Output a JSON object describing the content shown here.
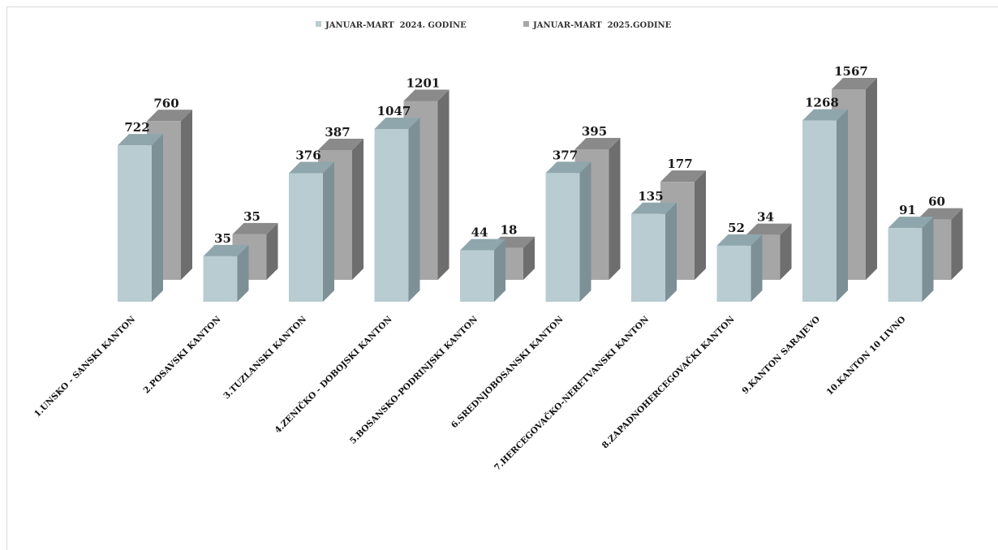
{
  "colors": {
    "series_2024_front": "#b8ccd1",
    "series_2024_side": "#7c9096",
    "series_2024_top": "#8fa6ac",
    "series_2025_front": "#a6a6a6",
    "series_2025_side": "#6e6e6e",
    "series_2025_top": "#8a8a8a"
  },
  "chart_data": {
    "type": "bar",
    "title": "",
    "xlabel": "",
    "ylabel": "",
    "legend_position": "top",
    "grid": false,
    "categories": [
      "1.UNSKO - SANSKI KANTON",
      "2.POSAVSKI KANTON",
      "3.TUZLANSKI KANTON",
      "4.ZENIČKO - DOBOJSKI KANTON",
      "5.BOSANSKO-PODRINJSKI KANTON",
      "6.SREDNJOBOSANSKI KANTON",
      "7.HERCEGOVAČKO-NERETVANSKI KANTON",
      "8.ZAPADNOHERCEGOVAČKI KANTON",
      "9.KANTON SARAJEVO",
      "10.KANTON 10 LIVNO"
    ],
    "series": [
      {
        "name": "JANUAR-MART  2024. GODINE",
        "values": [
          722,
          35,
          376,
          1047,
          44,
          377,
          135,
          52,
          1268,
          91
        ]
      },
      {
        "name": "JANUAR-MART  2025.GODINE",
        "values": [
          760,
          35,
          387,
          1201,
          18,
          395,
          177,
          34,
          1567,
          60
        ]
      }
    ]
  }
}
